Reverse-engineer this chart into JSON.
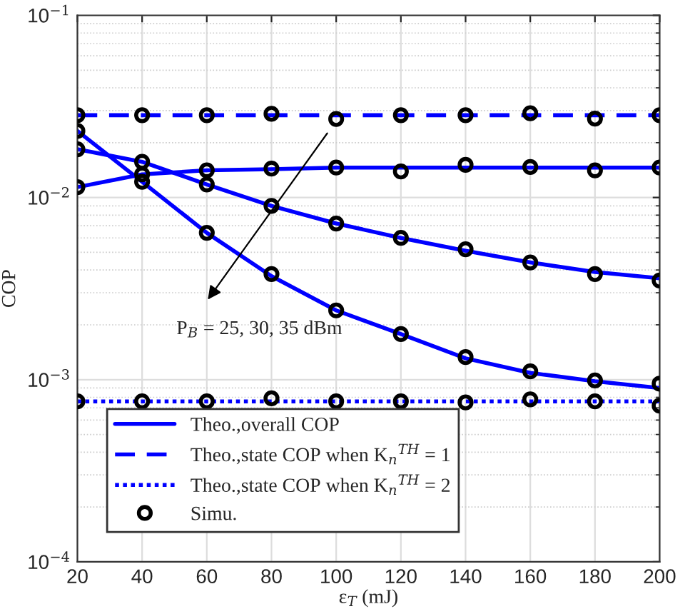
{
  "chart_data": {
    "type": "line",
    "xlabel": "ε$_{T}$ (mJ)",
    "ylabel": "COP",
    "log": "y",
    "grid": true,
    "legend": "lower left",
    "xlim": [
      20,
      200
    ],
    "xticks": [
      20,
      40,
      60,
      80,
      100,
      120,
      140,
      160,
      180,
      200
    ],
    "ylim": [
      0.0001,
      0.1
    ],
    "yticks": [
      {
        "value": 0.0001,
        "label": "10$^{−4}$"
      },
      {
        "value": 0.001,
        "label": "10$^{−3}$"
      },
      {
        "value": 0.01,
        "label": "10$^{−2}$"
      },
      {
        "value": 0.1,
        "label": "10$^{−1}$"
      }
    ],
    "x": [
      20,
      40,
      60,
      80,
      100,
      120,
      140,
      160,
      180,
      200
    ],
    "series": [
      {
        "name": "Theo.,overall COP",
        "color": "#0000ff",
        "line_style": "solid",
        "marker": "none",
        "values": [
          0.0114,
          0.0134,
          0.0141,
          0.0143,
          0.0146,
          0.0146,
          0.0146,
          0.0146,
          0.0146,
          0.0146
        ]
      },
      {
        "color": "#0000ff",
        "line_style": "solid",
        "marker": "none",
        "values": [
          0.0184,
          0.0157,
          0.0118,
          0.009,
          0.0072,
          0.006,
          0.0051,
          0.0044,
          0.0039,
          0.0036
        ]
      },
      {
        "color": "#0000ff",
        "line_style": "solid",
        "marker": "none",
        "values": [
          0.0232,
          0.0122,
          0.0064,
          0.0037,
          0.0024,
          0.00178,
          0.00131,
          0.00109,
          0.00098,
          0.0009
        ]
      },
      {
        "name": "Theo.,state COP when K$_{n}$$^{TH}$ = 1",
        "color": "#0000ff",
        "line_style": "dashed",
        "marker": "none",
        "values": [
          0.0283,
          0.0283,
          0.0283,
          0.0283,
          0.0283,
          0.0283,
          0.0283,
          0.0283,
          0.0283,
          0.0283
        ]
      },
      {
        "name": "Theo.,state COP when K$_{n}$$^{TH}$ = 2",
        "color": "#0000ff",
        "line_style": "dotted",
        "marker": "none",
        "values": [
          0.00076,
          0.00076,
          0.00076,
          0.00076,
          0.00076,
          0.00076,
          0.00076,
          0.00076,
          0.00076,
          0.00076
        ]
      },
      {
        "name": "Simu.",
        "type": "scatter",
        "color": "#000000",
        "marker": "circle",
        "x": [
          20,
          40,
          60,
          80,
          100,
          120,
          140,
          160,
          180,
          200,
          20,
          40,
          60,
          80,
          100,
          120,
          140,
          160,
          180,
          200,
          20,
          40,
          60,
          80,
          100,
          120,
          140,
          160,
          180,
          200,
          20,
          40,
          60,
          80,
          100,
          120,
          140,
          160,
          180,
          200,
          20,
          40,
          60,
          80,
          100,
          120,
          140,
          160,
          180,
          200
        ],
        "values": [
          0.0114,
          0.0134,
          0.0141,
          0.0144,
          0.0146,
          0.0139,
          0.0151,
          0.0147,
          0.0141,
          0.0146,
          0.0184,
          0.0157,
          0.0118,
          0.009,
          0.0072,
          0.006,
          0.0052,
          0.0044,
          0.0038,
          0.0035,
          0.0232,
          0.0122,
          0.0064,
          0.0038,
          0.0024,
          0.00178,
          0.00133,
          0.00111,
          0.00099,
          0.00095,
          0.0283,
          0.0283,
          0.0283,
          0.0288,
          0.027,
          0.0283,
          0.0283,
          0.029,
          0.0271,
          0.0283,
          0.00076,
          0.00076,
          0.00076,
          0.00079,
          0.00076,
          0.00076,
          0.00075,
          0.00078,
          0.00076,
          0.00072
        ]
      }
    ],
    "annotations": [
      "P$_{B}$ = 25, 30, 35 dBm"
    ]
  }
}
